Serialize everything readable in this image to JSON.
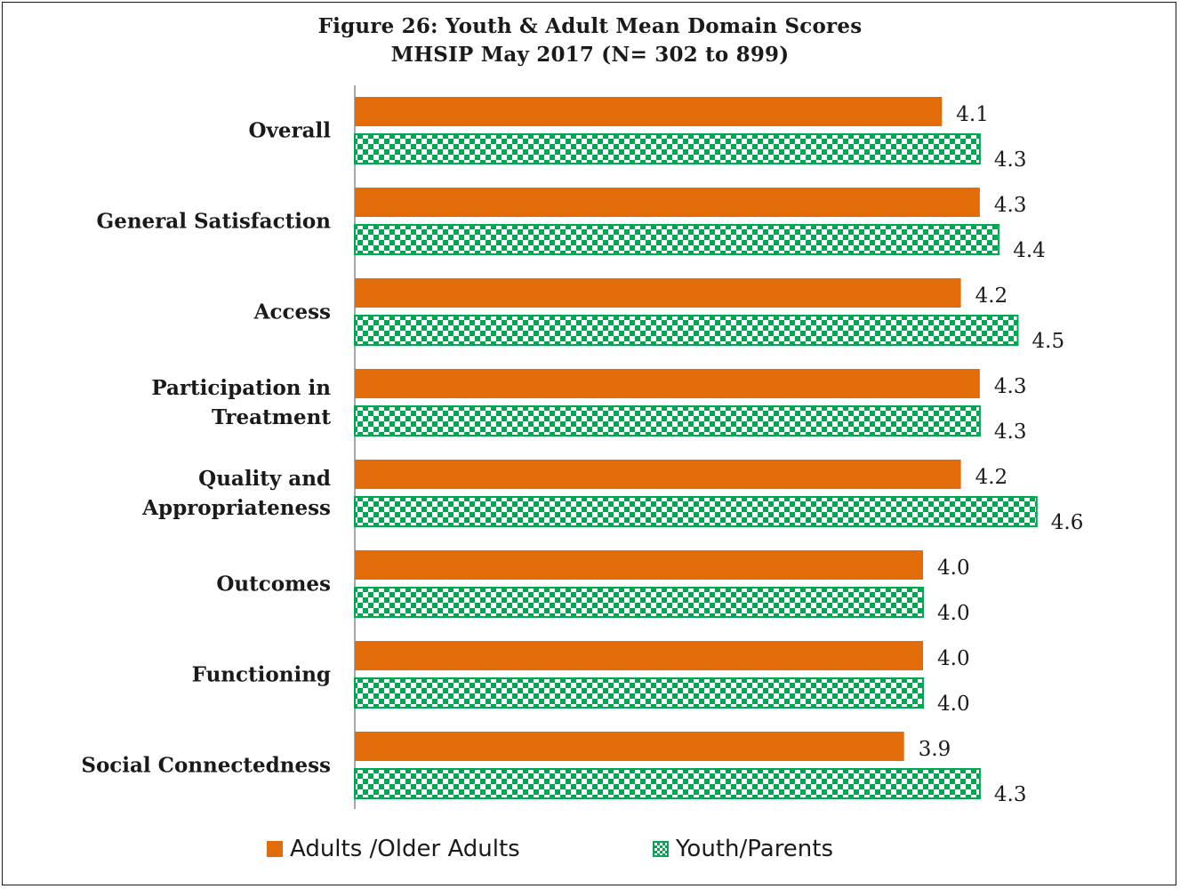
{
  "chart_data": {
    "type": "bar",
    "orientation": "horizontal",
    "title": "Figure 26: Youth & Adult Mean Domain Scores",
    "subtitle": "MHSIP May 2017 (N= 302  to 899)",
    "categories": [
      "Overall",
      "General Satisfaction",
      "Access",
      "Participation in Treatment",
      "Quality and Appropriateness",
      "Outcomes",
      "Functioning",
      "Social Connectedness"
    ],
    "category_lines": [
      [
        "Overall"
      ],
      [
        "General Satisfaction"
      ],
      [
        "Access"
      ],
      [
        "Participation in",
        "Treatment"
      ],
      [
        "Quality and",
        "Appropriateness"
      ],
      [
        "Outcomes"
      ],
      [
        "Functioning"
      ],
      [
        "Social Connectedness"
      ]
    ],
    "series": [
      {
        "name": "Adults /Older Adults",
        "color": "#e36c0a",
        "values": [
          4.1,
          4.3,
          4.2,
          4.3,
          4.2,
          4.0,
          4.0,
          3.9
        ],
        "labels": [
          "4.1",
          "4.3",
          "4.2",
          "4.3",
          "4.2",
          "4.0",
          "4.0",
          "3.9"
        ]
      },
      {
        "name": "Youth/Parents",
        "color": "#00a650",
        "pattern": "checkerboard",
        "values": [
          4.3,
          4.4,
          4.5,
          4.3,
          4.6,
          4.0,
          4.0,
          4.3
        ],
        "labels": [
          "4.3",
          "4.4",
          "4.5",
          "4.3",
          "4.6",
          "4.0",
          "4.0",
          "4.3"
        ]
      }
    ],
    "xlim": [
      1,
      5
    ],
    "grid": false,
    "legend_position": "bottom"
  }
}
